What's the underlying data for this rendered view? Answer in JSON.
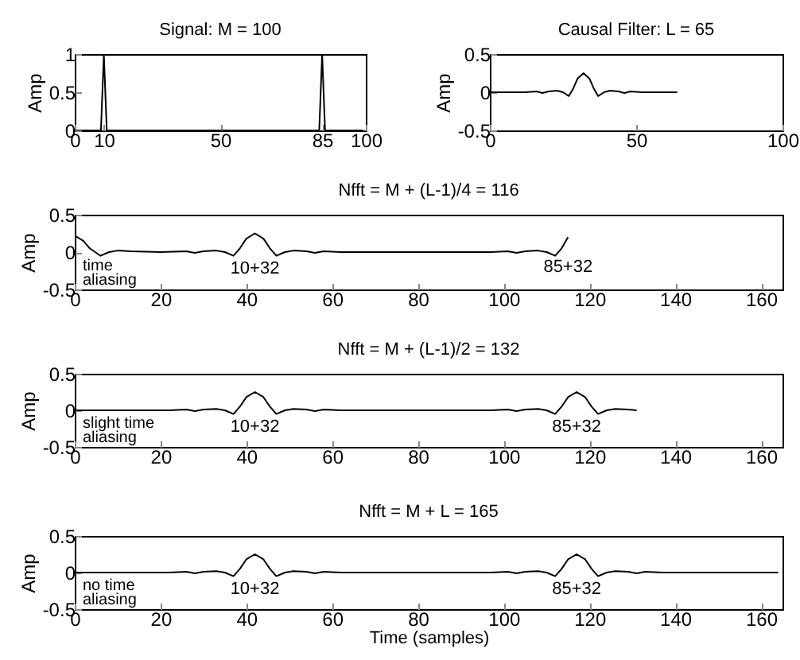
{
  "chart_data": [
    {
      "type": "line",
      "title": "Signal: M = 100",
      "ylabel": "Amp",
      "color": "#000000",
      "xlim": [
        0,
        100
      ],
      "xticks": [
        0,
        10,
        50,
        85,
        100
      ],
      "ylim": [
        0,
        1
      ],
      "yticks": [
        0,
        0.5,
        1
      ],
      "x": [
        0,
        9,
        10,
        11,
        84,
        85,
        86,
        99
      ],
      "values": [
        0,
        0,
        1,
        0,
        0,
        1,
        0,
        0
      ]
    },
    {
      "type": "line",
      "title": "Causal Filter: L = 65",
      "ylabel": "Amp",
      "color": "#000000",
      "xlim": [
        0,
        100
      ],
      "xticks": [
        0,
        50,
        100
      ],
      "ylim": [
        -0.5,
        0.5
      ],
      "yticks": [
        -0.5,
        0,
        0.5
      ],
      "x": [
        0,
        12,
        16,
        18,
        20,
        23,
        25,
        27,
        28.5,
        30,
        32,
        34,
        35.5,
        37,
        39,
        41,
        44,
        46,
        48,
        52,
        64
      ],
      "values": [
        0,
        0,
        0.01,
        -0.01,
        0.01,
        0.02,
        0,
        -0.05,
        0.05,
        0.18,
        0.25,
        0.18,
        0.05,
        -0.05,
        0,
        0.02,
        0.01,
        -0.01,
        0.01,
        0,
        0
      ]
    },
    {
      "type": "line",
      "title": "Nfft = M + (L-1)/4 = 116",
      "ylabel": "Amp",
      "color": "#000000",
      "xlim": [
        0,
        165
      ],
      "xticks": [
        0,
        20,
        40,
        60,
        80,
        100,
        120,
        140,
        160
      ],
      "ylim": [
        -0.5,
        0.5
      ],
      "yticks": [
        -0.5,
        0,
        0.5
      ],
      "x": [
        0,
        2,
        3.5,
        6,
        8,
        10,
        13,
        20,
        26,
        28,
        30,
        33,
        35,
        37,
        38.5,
        40,
        42,
        44,
        45.5,
        47,
        49,
        51,
        54,
        56,
        58,
        62,
        80,
        97,
        101,
        103,
        105,
        108,
        110,
        112,
        113.5,
        115
      ],
      "values": [
        0.22,
        0.15,
        0.05,
        -0.05,
        0,
        0.02,
        0.01,
        0,
        0.01,
        -0.01,
        0.01,
        0.02,
        0,
        -0.05,
        0.05,
        0.18,
        0.25,
        0.18,
        0.05,
        -0.05,
        0,
        0.02,
        0.01,
        -0.01,
        0.01,
        0,
        0,
        0,
        0.01,
        -0.01,
        0.01,
        0.02,
        0,
        -0.05,
        0.05,
        0.2
      ],
      "annotations": [
        "time\naliasing",
        {
          "text": "10+32",
          "x": 42,
          "y": 0.25
        },
        {
          "text": "85+32",
          "x": 115,
          "y": 0.2
        }
      ]
    },
    {
      "type": "line",
      "title": "Nfft = M + (L-1)/2 = 132",
      "ylabel": "Amp",
      "color": "#000000",
      "xlim": [
        0,
        165
      ],
      "xticks": [
        0,
        20,
        40,
        60,
        80,
        100,
        120,
        140,
        160
      ],
      "ylim": [
        -0.5,
        0.5
      ],
      "yticks": [
        -0.5,
        0,
        0.5
      ],
      "x": [
        0,
        22,
        26,
        28,
        30,
        33,
        35,
        37,
        38.5,
        40,
        42,
        44,
        45.5,
        47,
        49,
        51,
        54,
        56,
        58,
        62,
        80,
        97,
        101,
        103,
        105,
        108,
        110,
        112,
        113.5,
        115,
        117,
        119,
        120.5,
        122,
        124,
        126,
        129,
        131
      ],
      "values": [
        0,
        0,
        0.01,
        -0.01,
        0.01,
        0.02,
        0,
        -0.05,
        0.05,
        0.18,
        0.25,
        0.18,
        0.05,
        -0.05,
        0,
        0.02,
        0.01,
        -0.01,
        0.01,
        0,
        0,
        0,
        0.01,
        -0.01,
        0.01,
        0.02,
        0,
        -0.05,
        0.05,
        0.18,
        0.25,
        0.18,
        0.05,
        -0.05,
        0,
        0.02,
        0.01,
        0
      ],
      "annotations": [
        "slight time\naliasing",
        {
          "text": "10+32",
          "x": 42,
          "y": 0.25
        },
        {
          "text": "85+32",
          "x": 117,
          "y": 0.25
        }
      ]
    },
    {
      "type": "line",
      "title": "Nfft = M + L = 165",
      "xlabel": "Time (samples)",
      "ylabel": "Amp",
      "color": "#000000",
      "xlim": [
        0,
        165
      ],
      "xticks": [
        0,
        20,
        40,
        60,
        80,
        100,
        120,
        140,
        160
      ],
      "ylim": [
        -0.5,
        0.5
      ],
      "yticks": [
        -0.5,
        0,
        0.5
      ],
      "x": [
        0,
        22,
        26,
        28,
        30,
        33,
        35,
        37,
        38.5,
        40,
        42,
        44,
        45.5,
        47,
        49,
        51,
        54,
        56,
        58,
        62,
        80,
        97,
        101,
        103,
        105,
        108,
        110,
        112,
        113.5,
        115,
        117,
        119,
        120.5,
        122,
        124,
        126,
        129,
        131,
        133,
        137,
        164
      ],
      "values": [
        0,
        0,
        0.01,
        -0.01,
        0.01,
        0.02,
        0,
        -0.05,
        0.05,
        0.18,
        0.25,
        0.18,
        0.05,
        -0.05,
        0,
        0.02,
        0.01,
        -0.01,
        0.01,
        0,
        0,
        0,
        0.01,
        -0.01,
        0.01,
        0.02,
        0,
        -0.05,
        0.05,
        0.18,
        0.25,
        0.18,
        0.05,
        -0.05,
        0,
        0.02,
        0.01,
        -0.01,
        0.01,
        0,
        0
      ],
      "annotations": [
        "no time\naliasing",
        {
          "text": "10+32",
          "x": 42,
          "y": 0.25
        },
        {
          "text": "85+32",
          "x": 117,
          "y": 0.25
        }
      ]
    }
  ]
}
